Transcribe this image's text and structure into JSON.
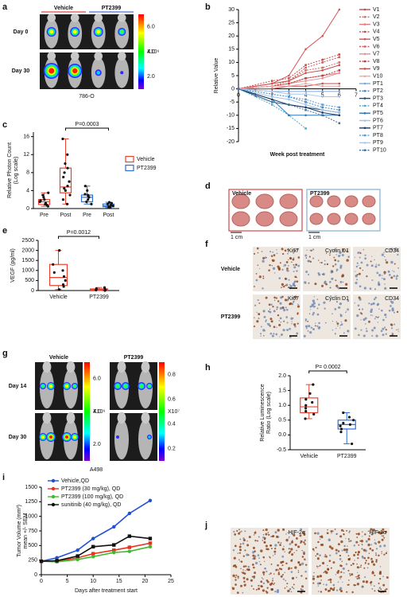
{
  "panel_labels": [
    "a",
    "b",
    "c",
    "d",
    "e",
    "f",
    "g",
    "h",
    "i",
    "j"
  ],
  "panel_a": {
    "groups": [
      "Vehicle",
      "PT2399"
    ],
    "rows": [
      "Day 0",
      "Day 30"
    ],
    "cell_line": "786-O",
    "colorbar": {
      "lim": [
        1,
        7
      ],
      "ticks": [
        {
          "value": 6,
          "label": "6.0"
        },
        {
          "value": 4,
          "label": "4.0"
        },
        {
          "value": 2,
          "label": "2.0"
        }
      ],
      "unit": "X10⁶"
    }
  },
  "panel_d": {
    "groups": [
      "Vehicle",
      "PT2399"
    ],
    "scale_bars": [
      "1 cm",
      "1 cm"
    ]
  },
  "panel_f": {
    "stains": [
      "Ki67",
      "Cyclin D1",
      "CD34"
    ],
    "groups": [
      "Vehicle",
      "PT2399"
    ]
  },
  "panel_g": {
    "groups": [
      "Vehicle",
      "PT2399"
    ],
    "rows": [
      "Day 14",
      "Day 30"
    ],
    "cell_line": "A498",
    "colorbars": [
      {
        "lim": [
          1,
          7
        ],
        "ticks": [
          {
            "value": 6,
            "label": "6.0"
          },
          {
            "value": 4,
            "label": "4.0"
          },
          {
            "value": 2,
            "label": "2.0"
          }
        ],
        "unit": "X10⁶"
      },
      {
        "lim": [
          0.1,
          0.9
        ],
        "ticks": [
          0.8,
          0.6,
          0.4,
          0.2
        ],
        "unit": "X10⁷"
      }
    ]
  },
  "panel_j": {
    "stains": [
      "HIF-2α",
      "HIF-1α"
    ]
  },
  "chart_data": [
    {
      "type": "line",
      "y_label": [
        "Relative Value"
      ],
      "x_label": "Week post treatment",
      "x": [
        0,
        2,
        3,
        4,
        5,
        6
      ],
      "xlim": [
        0,
        7
      ],
      "xticks": [
        0,
        1,
        2,
        3,
        4,
        5,
        6,
        7
      ],
      "ylim": [
        -20,
        30
      ],
      "yticks": [
        -20,
        -15,
        -10,
        -5,
        0,
        5,
        10,
        15,
        20,
        25,
        30
      ],
      "series": [
        {
          "name": "V1",
          "color": "#c0504d",
          "values": [
            0,
            2,
            3,
            6,
            7,
            9
          ]
        },
        {
          "name": "V2",
          "color": "#d46a6a",
          "dashed": true,
          "values": [
            0,
            1,
            3,
            7,
            8,
            10
          ]
        },
        {
          "name": "V3",
          "color": "#e07b7b",
          "values": [
            0,
            1,
            2,
            4,
            5,
            6
          ]
        },
        {
          "name": "V4",
          "color": "#c0504d",
          "dashed": true,
          "values": [
            0,
            3,
            4,
            9,
            11,
            13
          ]
        },
        {
          "name": "V5",
          "color": "#d9534f",
          "values": [
            0,
            2,
            5,
            15,
            20,
            30
          ]
        },
        {
          "name": "V6",
          "color": "#cd5c5c",
          "dashed": true,
          "values": [
            0,
            1,
            3,
            8,
            10,
            12
          ]
        },
        {
          "name": "V7",
          "color": "#e88f8f",
          "values": [
            0,
            1,
            2,
            3,
            4,
            6
          ]
        },
        {
          "name": "V8",
          "color": "#b84040",
          "dashed": true,
          "values": [
            0,
            1,
            2,
            4,
            5,
            7
          ]
        },
        {
          "name": "V9",
          "color": "#c0504d",
          "values": [
            0,
            0,
            1,
            1,
            2,
            2
          ]
        },
        {
          "name": "V10",
          "color": "#f0a8a8",
          "values": [
            0,
            1,
            1,
            2,
            1,
            1
          ]
        },
        {
          "name": "PT1",
          "color": "#7fa7d8",
          "values": [
            0,
            -1,
            -1,
            -1,
            -1,
            -1
          ]
        },
        {
          "name": "PT2",
          "color": "#4f81bd",
          "dashed": true,
          "values": [
            0,
            -2,
            -3,
            -5,
            -7,
            -8
          ]
        },
        {
          "name": "PT3",
          "color": "#1f4e79",
          "values": [
            0,
            -5,
            -6,
            -7,
            -8,
            -9
          ]
        },
        {
          "name": "PT4",
          "color": "#4bacc6",
          "dashed": true,
          "values": [
            0,
            -6,
            -10,
            -15,
            null,
            null
          ]
        },
        {
          "name": "PT5",
          "color": "#2e75b6",
          "values": [
            0,
            -4,
            -10,
            -10,
            -10,
            -10
          ]
        },
        {
          "name": "PT6",
          "color": "#9dc3e6",
          "values": [
            0,
            -3,
            -4,
            -6,
            -8,
            -9
          ]
        },
        {
          "name": "PT7",
          "color": "#1f3864",
          "values": [
            0,
            -4,
            -6,
            -7,
            -9,
            -10
          ]
        },
        {
          "name": "PT8",
          "color": "#5b9bd5",
          "dashed": true,
          "values": [
            0,
            -2,
            -3,
            -4,
            -6,
            -7
          ]
        },
        {
          "name": "PT9",
          "color": "#a6c8ef",
          "values": [
            0,
            -1,
            -2,
            -2,
            -3,
            -3
          ]
        },
        {
          "name": "PT10",
          "color": "#41719c",
          "dashed": true,
          "values": [
            0,
            -5,
            -6,
            -8,
            -10,
            -13
          ]
        }
      ]
    },
    {
      "type": "box",
      "y_label": [
        "Relative Photon Count",
        "(Log scale)"
      ],
      "annotation": "P=0.0003",
      "categories": [
        "Pre",
        "Post",
        "Pre",
        "Post"
      ],
      "ylim": [
        0,
        17
      ],
      "yticks": [
        0,
        4,
        8,
        12,
        16
      ],
      "legend": [
        {
          "name": "Vehicle",
          "color": "#e8432e"
        },
        {
          "name": "PT2399",
          "color": "#2e6fd6"
        }
      ],
      "boxes": [
        {
          "color": "#e8432e",
          "min": 0.5,
          "q1": 0.9,
          "median": 1.5,
          "q3": 2,
          "max": 3.5,
          "points": [
            0.5,
            0.8,
            1,
            1.2,
            1.5,
            1.8,
            2,
            2.5,
            3,
            3.5
          ]
        },
        {
          "color": "#e8432e",
          "min": 1,
          "q1": 3.5,
          "median": 4.8,
          "q3": 9,
          "max": 15.5,
          "points": [
            1,
            2,
            3,
            4,
            4.5,
            5,
            6,
            7,
            8,
            9,
            10,
            12,
            15.5
          ]
        },
        {
          "color": "#2e6fd6",
          "min": 1,
          "q1": 1.5,
          "median": 2.5,
          "q3": 3,
          "max": 5,
          "points": [
            1,
            1.5,
            2,
            2.5,
            2.8,
            3,
            3.2,
            4,
            5
          ]
        },
        {
          "color": "#2e6fd6",
          "min": 0.2,
          "q1": 0.4,
          "median": 0.6,
          "q3": 1,
          "max": 1.4,
          "points": [
            0.2,
            0.3,
            0.5,
            0.6,
            0.8,
            1,
            1.2,
            1.4
          ]
        }
      ]
    },
    {
      "type": "box",
      "y_label": [
        "VEGF (pg/ml)"
      ],
      "annotation": "P=0.0012",
      "categories": [
        "Vehicle",
        "PT2399"
      ],
      "ylim": [
        0,
        2500
      ],
      "yticks": [
        0,
        500,
        1000,
        1500,
        2000,
        2500
      ],
      "boxes": [
        {
          "color": "#e8432e",
          "min": 50,
          "q1": 250,
          "median": 650,
          "q3": 1300,
          "max": 2000,
          "points": [
            50,
            200,
            300,
            500,
            700,
            900,
            1000,
            1300,
            2000
          ]
        },
        {
          "color": "#e8432e",
          "min": 0,
          "q1": 20,
          "median": 50,
          "q3": 80,
          "max": 150,
          "points": [
            0,
            20,
            30,
            50,
            60,
            100,
            150
          ]
        }
      ]
    },
    {
      "type": "box",
      "y_label": [
        "Relative Luminescence",
        "Ratio (Log scale)"
      ],
      "annotation": "P= 0.0002",
      "categories": [
        "Vehicle",
        "PT2399"
      ],
      "ylim": [
        -0.5,
        2
      ],
      "yticks": [
        -0.5,
        {
          "value": 0,
          "label": "0.0"
        },
        0.5,
        {
          "value": 1,
          "label": "1.0"
        },
        1.5,
        {
          "value": 2,
          "label": "2.0"
        }
      ],
      "boxes": [
        {
          "color": "#e8432e",
          "min": 0.55,
          "q1": 0.75,
          "median": 0.95,
          "q3": 1.25,
          "max": 1.7,
          "points": [
            0.55,
            0.7,
            0.8,
            0.9,
            1,
            1.1,
            1.2,
            1.4,
            1.7
          ]
        },
        {
          "color": "#2e6fd6",
          "min": -0.3,
          "q1": 0.2,
          "median": 0.35,
          "q3": 0.5,
          "max": 0.75,
          "points": [
            -0.3,
            0.1,
            0.2,
            0.3,
            0.35,
            0.4,
            0.5,
            0.6,
            0.75
          ]
        }
      ]
    },
    {
      "type": "line",
      "y_label": [
        "Tumor Volume (mm³)",
        "mean +/- SEM"
      ],
      "x_label": "Days after treatment start",
      "x": [
        0,
        3,
        7,
        10,
        14,
        17,
        21
      ],
      "xlim": [
        0,
        25
      ],
      "xticks": [
        0,
        5,
        10,
        15,
        20,
        25
      ],
      "ylim": [
        0,
        1500
      ],
      "yticks": [
        0,
        250,
        500,
        750,
        1000,
        1250,
        1500
      ],
      "series": [
        {
          "name": "Vehicle,QD",
          "color": "#1f4fd8",
          "values": [
            230,
            290,
            420,
            620,
            820,
            1050,
            1270
          ]
        },
        {
          "name": "PT2399 (30 mg/kg), QD",
          "color": "#e8321e",
          "values": [
            230,
            230,
            290,
            360,
            420,
            470,
            540
          ]
        },
        {
          "name": "PT2399 (100 mg/kg), QD",
          "color": "#3dbb2a",
          "values": [
            230,
            220,
            260,
            310,
            380,
            400,
            480
          ]
        },
        {
          "name": "sunitinib (40 mg/kg), QD",
          "color": "#111111",
          "values": [
            230,
            240,
            320,
            480,
            510,
            660,
            620
          ]
        }
      ]
    }
  ]
}
